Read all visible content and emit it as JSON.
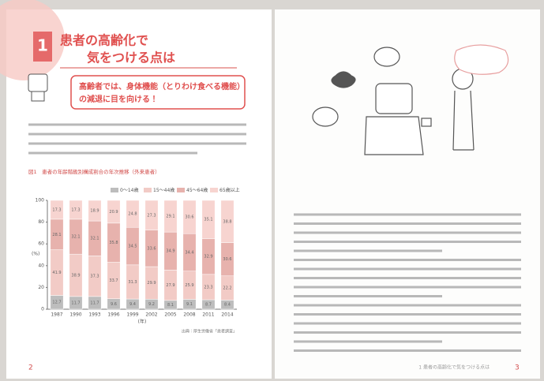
{
  "left_page": {
    "section_number": "1",
    "title_line1": "患者の高齢化で",
    "title_line2": "気をつける点は",
    "point_line1": "高齢者では、身体機能（とりわけ食べる機能）",
    "point_line2": "の減退に目を向ける！",
    "page_number": "2"
  },
  "chart_data": {
    "type": "stacked-bar",
    "title": "図1　患者の年齢階級別構成割合の年次推移（外来患者）",
    "x_label": "(年)",
    "y_label": "(%)",
    "source": "出典：厚生労働省「患者調査」",
    "categories": [
      "1987",
      "1990",
      "1993",
      "1996",
      "1999",
      "2002",
      "2005",
      "2008",
      "2011",
      "2014"
    ],
    "series": [
      {
        "name": "0〜14歳",
        "color": "#bdbdbd",
        "values": [
          12.7,
          11.7,
          11.7,
          9.6,
          9.4,
          9.2,
          8.1,
          9.1,
          8.7,
          8.4
        ]
      },
      {
        "name": "15〜44歳",
        "color": "#f2cbc6",
        "values": [
          41.9,
          38.9,
          37.3,
          33.7,
          31.3,
          29.9,
          27.9,
          25.9,
          23.3,
          22.2
        ]
      },
      {
        "name": "45〜64歳",
        "color": "#e7b2ad",
        "values": [
          28.1,
          32.1,
          32.1,
          35.8,
          34.5,
          33.6,
          34.9,
          34.4,
          32.9,
          30.6
        ]
      },
      {
        "name": "65歳以上",
        "color": "#f7d4d0",
        "values": [
          17.3,
          17.3,
          18.9,
          20.9,
          24.8,
          27.3,
          29.1,
          30.6,
          35.1,
          38.8
        ]
      }
    ],
    "ylim": [
      0,
      100
    ],
    "yticks": [
      0,
      20,
      40,
      60,
      80,
      100
    ],
    "grid": false
  },
  "right_page": {
    "footer": "1  患者の高齢化で気をつける点は",
    "page_number": "3"
  }
}
